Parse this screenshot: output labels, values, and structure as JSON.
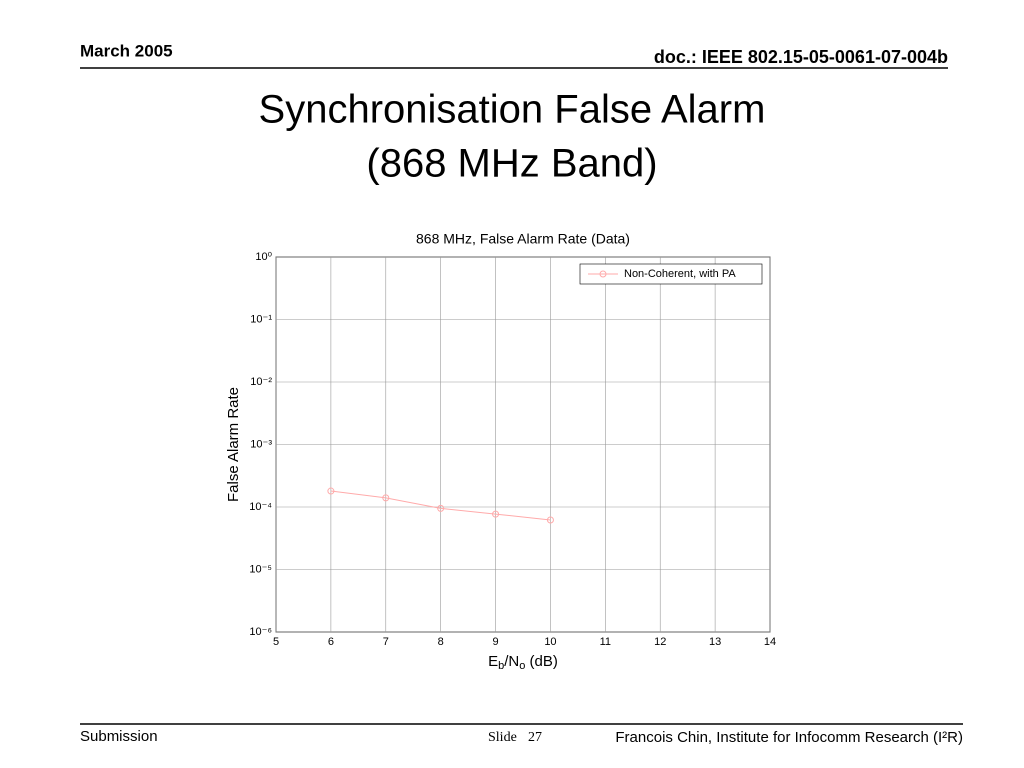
{
  "header": {
    "date": "March 2005",
    "doc": "doc.: IEEE 802.15-05-0061-07-004b"
  },
  "slide_title": [
    "Synchronisation False Alarm",
    "(868 MHz Band)"
  ],
  "chart_data": {
    "type": "line",
    "title": "868 MHz, False Alarm Rate (Data)",
    "ylabel": "False Alarm Rate",
    "xlabel_parts": [
      "E",
      "b",
      "/N",
      "o",
      " (dB)"
    ],
    "xlabel_sub": [
      false,
      true,
      false,
      true,
      false
    ],
    "x": [
      6,
      7,
      8,
      9,
      10
    ],
    "series": [
      {
        "name": "Non-Coherent, with PA",
        "color": "#ffaaaa",
        "values": [
          0.00018,
          0.00014,
          9.5e-05,
          7.7e-05,
          6.2e-05
        ]
      }
    ],
    "xlim": [
      5,
      14
    ],
    "xticks": [
      5,
      6,
      7,
      8,
      9,
      10,
      11,
      12,
      13,
      14
    ],
    "ylim": [
      1e-06,
      1
    ],
    "log_y": true,
    "yticks": [
      {
        "value": 1,
        "label": "10⁰"
      },
      {
        "value": 0.1,
        "label": "10⁻¹"
      },
      {
        "value": 0.01,
        "label": "10⁻²"
      },
      {
        "value": 0.001,
        "label": "10⁻³"
      },
      {
        "value": 0.0001,
        "label": "10⁻⁴"
      },
      {
        "value": 1e-05,
        "label": "10⁻⁵"
      },
      {
        "value": 1e-06,
        "label": "10⁻⁶"
      }
    ],
    "grid": true,
    "legend": "upper right"
  },
  "footer": {
    "left": "Submission",
    "slide_label": "Slide",
    "slide_number": 27,
    "author": "Francois Chin, Institute for Infocomm Research (I²R)"
  }
}
